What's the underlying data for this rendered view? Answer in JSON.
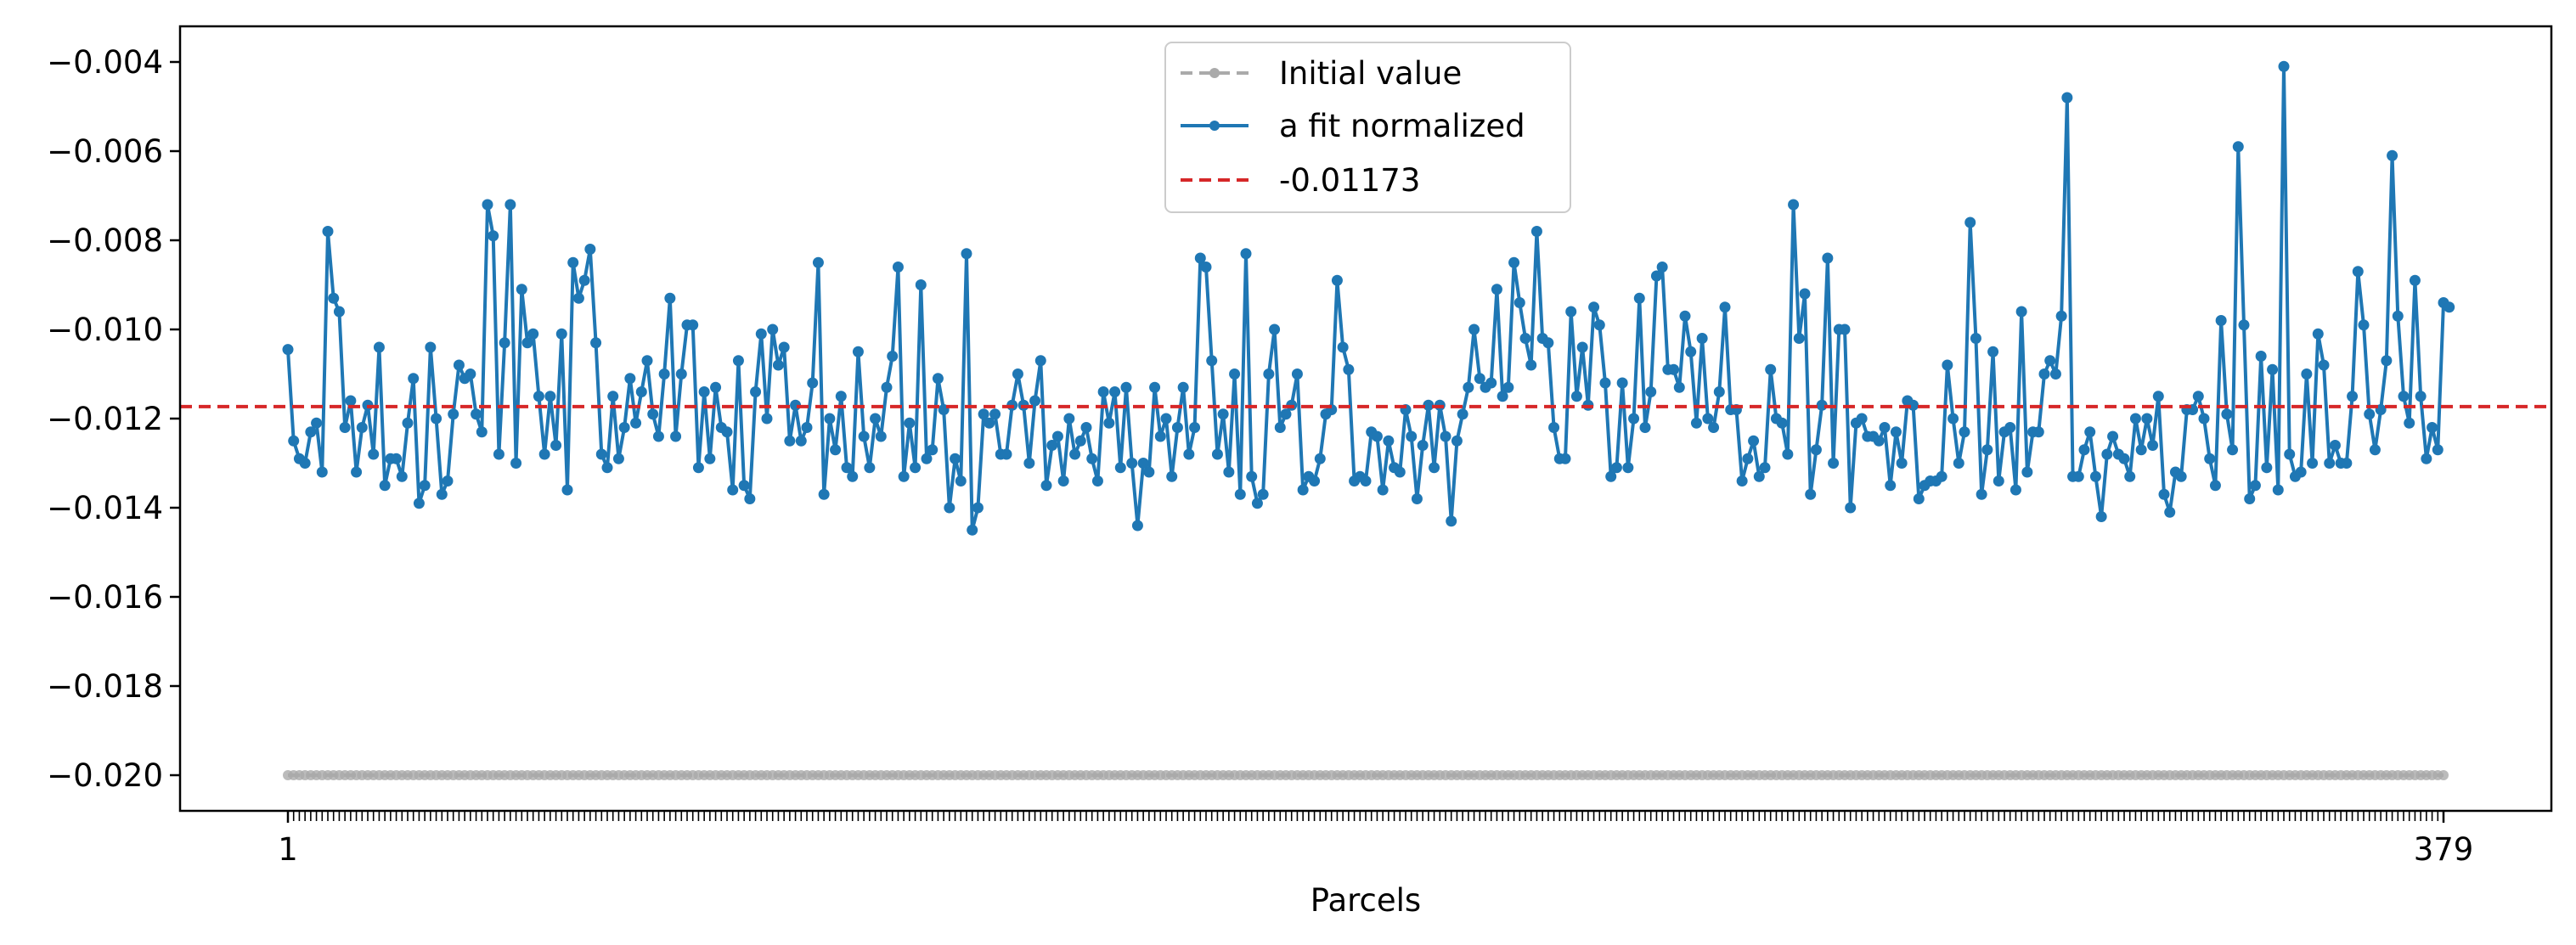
{
  "chart_data": {
    "type": "line",
    "title": "",
    "xlabel": "Parcels",
    "ylabel": "",
    "x_range": [
      1,
      379
    ],
    "x_tick_labels": [
      "1",
      "379"
    ],
    "ylim": [
      -0.0208,
      -0.0032
    ],
    "y_ticks": [
      -0.02,
      -0.018,
      -0.016,
      -0.014,
      -0.012,
      -0.01,
      -0.008,
      -0.006,
      -0.004
    ],
    "y_tick_labels": [
      "−0.020",
      "−0.018",
      "−0.016",
      "−0.014",
      "−0.012",
      "−0.010",
      "−0.008",
      "−0.006",
      "−0.004"
    ],
    "grid": false,
    "legend_position": "top-center",
    "series": [
      {
        "name": "Initial value",
        "color": "#aaaaaa",
        "style": "dashed-with-markers",
        "constant_value": -0.02
      },
      {
        "name": "a fit normalized",
        "color": "#1f77b4",
        "style": "solid-with-markers",
        "values": [
          -0.01045,
          -0.0125,
          -0.0129,
          -0.013,
          -0.0123,
          -0.0121,
          -0.0132,
          -0.0078,
          -0.0093,
          -0.0096,
          -0.0122,
          -0.0116,
          -0.0132,
          -0.0122,
          -0.0117,
          -0.0128,
          -0.0104,
          -0.0135,
          -0.0129,
          -0.0129,
          -0.0133,
          -0.0121,
          -0.0111,
          -0.0139,
          -0.0135,
          -0.0104,
          -0.012,
          -0.0137,
          -0.0134,
          -0.0119,
          -0.0108,
          -0.0111,
          -0.011,
          -0.0119,
          -0.0123,
          -0.0072,
          -0.0079,
          -0.0128,
          -0.0103,
          -0.0072,
          -0.013,
          -0.0091,
          -0.0103,
          -0.0101,
          -0.0115,
          -0.0128,
          -0.0115,
          -0.0126,
          -0.0101,
          -0.0136,
          -0.0085,
          -0.0093,
          -0.0089,
          -0.0082,
          -0.0103,
          -0.0128,
          -0.0131,
          -0.0115,
          -0.0129,
          -0.0122,
          -0.0111,
          -0.0121,
          -0.0114,
          -0.0107,
          -0.0119,
          -0.0124,
          -0.011,
          -0.0093,
          -0.0124,
          -0.011,
          -0.0099,
          -0.0099,
          -0.0131,
          -0.0114,
          -0.0129,
          -0.0113,
          -0.0122,
          -0.0123,
          -0.0136,
          -0.0107,
          -0.0135,
          -0.0138,
          -0.0114,
          -0.0101,
          -0.012,
          -0.01,
          -0.0108,
          -0.0104,
          -0.0125,
          -0.0117,
          -0.0125,
          -0.0122,
          -0.0112,
          -0.0085,
          -0.0137,
          -0.012,
          -0.0127,
          -0.0115,
          -0.0131,
          -0.0133,
          -0.0105,
          -0.0124,
          -0.0131,
          -0.012,
          -0.0124,
          -0.0113,
          -0.0106,
          -0.0086,
          -0.0133,
          -0.0121,
          -0.0131,
          -0.009,
          -0.0129,
          -0.0127,
          -0.0111,
          -0.0118,
          -0.014,
          -0.0129,
          -0.0134,
          -0.0083,
          -0.0145,
          -0.014,
          -0.0119,
          -0.0121,
          -0.0119,
          -0.0128,
          -0.0128,
          -0.0117,
          -0.011,
          -0.0117,
          -0.013,
          -0.0116,
          -0.0107,
          -0.0135,
          -0.0126,
          -0.0124,
          -0.0134,
          -0.012,
          -0.0128,
          -0.0125,
          -0.0122,
          -0.0129,
          -0.0134,
          -0.0114,
          -0.0121,
          -0.0114,
          -0.0131,
          -0.0113,
          -0.013,
          -0.0144,
          -0.013,
          -0.0132,
          -0.0113,
          -0.0124,
          -0.012,
          -0.0133,
          -0.0122,
          -0.0113,
          -0.0128,
          -0.0122,
          -0.0084,
          -0.0086,
          -0.0107,
          -0.0128,
          -0.0119,
          -0.0132,
          -0.011,
          -0.0137,
          -0.0083,
          -0.0133,
          -0.0139,
          -0.0137,
          -0.011,
          -0.01,
          -0.0122,
          -0.0119,
          -0.0117,
          -0.011,
          -0.0136,
          -0.0133,
          -0.0134,
          -0.0129,
          -0.0119,
          -0.0118,
          -0.0089,
          -0.0104,
          -0.0109,
          -0.0134,
          -0.0133,
          -0.0134,
          -0.0123,
          -0.0124,
          -0.0136,
          -0.0125,
          -0.0131,
          -0.0132,
          -0.0118,
          -0.0124,
          -0.0138,
          -0.0126,
          -0.0117,
          -0.0131,
          -0.0117,
          -0.0124,
          -0.0143,
          -0.0125,
          -0.0119,
          -0.0113,
          -0.01,
          -0.0111,
          -0.0113,
          -0.0112,
          -0.0091,
          -0.0115,
          -0.0113,
          -0.0085,
          -0.0094,
          -0.0102,
          -0.0108,
          -0.0078,
          -0.0102,
          -0.0103,
          -0.0122,
          -0.0129,
          -0.0129,
          -0.0096,
          -0.0115,
          -0.0104,
          -0.0117,
          -0.0095,
          -0.0099,
          -0.0112,
          -0.0133,
          -0.0131,
          -0.0112,
          -0.0131,
          -0.012,
          -0.0093,
          -0.0122,
          -0.0114,
          -0.0088,
          -0.0086,
          -0.0109,
          -0.0109,
          -0.0113,
          -0.0097,
          -0.0105,
          -0.0121,
          -0.0102,
          -0.012,
          -0.0122,
          -0.0114,
          -0.0095,
          -0.0118,
          -0.0118,
          -0.0134,
          -0.0129,
          -0.0125,
          -0.0133,
          -0.0131,
          -0.0109,
          -0.012,
          -0.0121,
          -0.0128,
          -0.0072,
          -0.0102,
          -0.0092,
          -0.0137,
          -0.0127,
          -0.0117,
          -0.0084,
          -0.013,
          -0.01,
          -0.01,
          -0.014,
          -0.0121,
          -0.012,
          -0.0124,
          -0.0124,
          -0.0125,
          -0.0122,
          -0.0135,
          -0.0123,
          -0.013,
          -0.0116,
          -0.0117,
          -0.0138,
          -0.0135,
          -0.0134,
          -0.0134,
          -0.0133,
          -0.0108,
          -0.012,
          -0.013,
          -0.0123,
          -0.0076,
          -0.0102,
          -0.0137,
          -0.0127,
          -0.0105,
          -0.0134,
          -0.0123,
          -0.0122,
          -0.0136,
          -0.0096,
          -0.0132,
          -0.0123,
          -0.0123,
          -0.011,
          -0.0107,
          -0.011,
          -0.0097,
          -0.0048,
          -0.0133,
          -0.0133,
          -0.0127,
          -0.0123,
          -0.0133,
          -0.0142,
          -0.0128,
          -0.0124,
          -0.0128,
          -0.0129,
          -0.0133,
          -0.012,
          -0.0127,
          -0.012,
          -0.0126,
          -0.0115,
          -0.0137,
          -0.0141,
          -0.0132,
          -0.0133,
          -0.0118,
          -0.0118,
          -0.0115,
          -0.012,
          -0.0129,
          -0.0135,
          -0.0098,
          -0.0119,
          -0.0127,
          -0.0059,
          -0.0099,
          -0.0138,
          -0.0135,
          -0.0106,
          -0.0131,
          -0.0109,
          -0.0136,
          -0.0041,
          -0.0128,
          -0.0133,
          -0.0132,
          -0.011,
          -0.013,
          -0.0101,
          -0.0108,
          -0.013,
          -0.0126,
          -0.013,
          -0.013,
          -0.0115,
          -0.0087,
          -0.0099,
          -0.0119,
          -0.0127,
          -0.0118,
          -0.0107,
          -0.0061,
          -0.0097,
          -0.0115,
          -0.0121,
          -0.0089,
          -0.0115,
          -0.0129,
          -0.0122,
          -0.0127,
          -0.0094,
          -0.0095
        ]
      },
      {
        "name": "-0.01173",
        "color": "#d62728",
        "style": "dashed",
        "constant_value": -0.01173
      }
    ]
  }
}
